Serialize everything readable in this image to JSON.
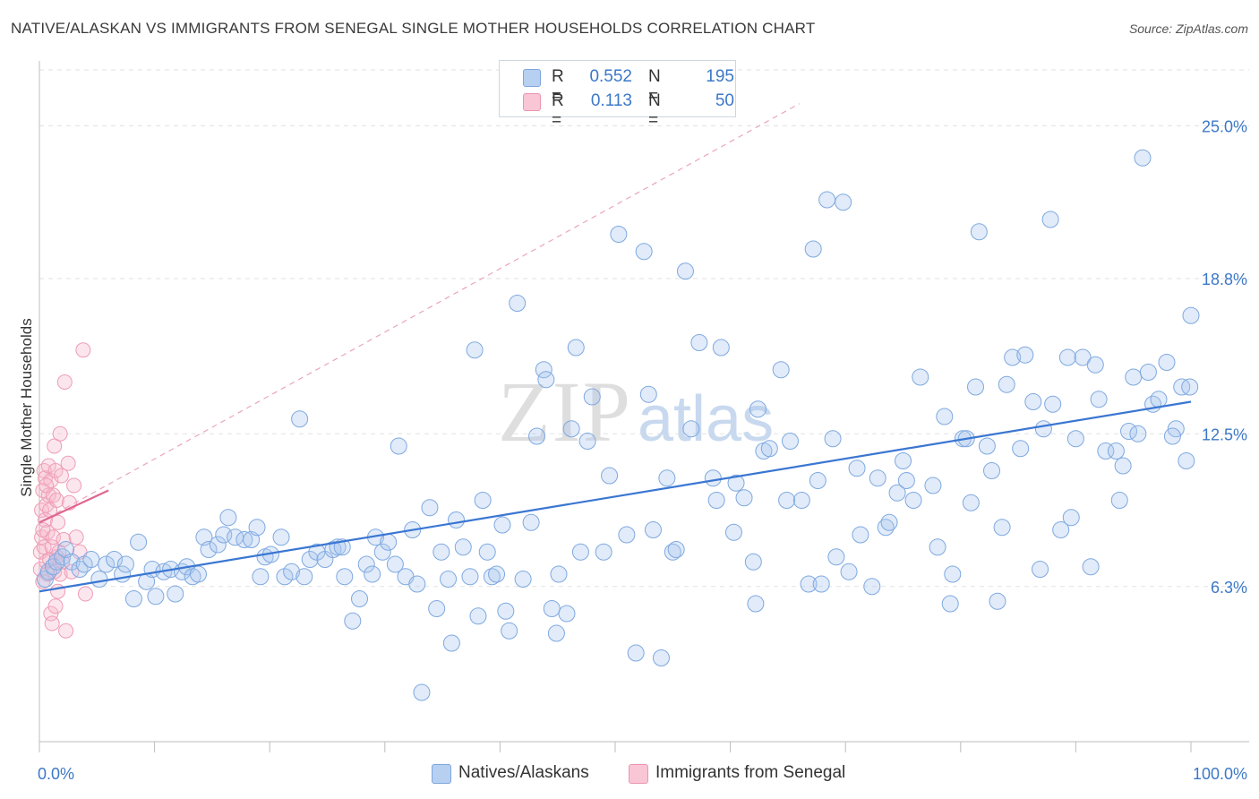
{
  "header": {
    "title": "NATIVE/ALASKAN VS IMMIGRANTS FROM SENEGAL SINGLE MOTHER HOUSEHOLDS CORRELATION CHART",
    "source": "Source: ZipAtlas.com"
  },
  "legend_top": {
    "rows": [
      {
        "r_label": "R =",
        "r_value": "0.552",
        "n_label": "N =",
        "n_value": "195",
        "color": "#a8c6ee"
      },
      {
        "r_label": "R =",
        "r_value": "0.113",
        "n_label": "N =",
        "n_value": "50",
        "color": "#f6b8cb"
      }
    ]
  },
  "legend_bottom": {
    "items": [
      {
        "label": "Natives/Alaskans",
        "color": "#a8c6ee"
      },
      {
        "label": "Immigrants from Senegal",
        "color": "#f6b8cb"
      }
    ]
  },
  "watermark": {
    "zip": "ZIP",
    "atlas": "atlas"
  },
  "chart_data": {
    "type": "scatter",
    "title": "NATIVE/ALASKAN VS IMMIGRANTS FROM SENEGAL SINGLE MOTHER HOUSEHOLDS CORRELATION CHART",
    "xlabel": "",
    "ylabel": "Single Mother Households",
    "xlim": [
      0,
      100
    ],
    "ylim": [
      0,
      27.2
    ],
    "x_tick_labels": [
      "0.0%",
      "100.0%"
    ],
    "y_ticks": [
      6.3,
      12.5,
      18.8,
      25.0
    ],
    "y_tick_labels": [
      "6.3%",
      "12.5%",
      "18.8%",
      "25.0%"
    ],
    "grid": "horizontal dashed",
    "legend_position": "top-center",
    "colors": {
      "blue": "#3a76d2",
      "blue_fill": "#a8c6ee",
      "pink": "#e06690",
      "pink_fill": "#f6b8cb"
    },
    "series": [
      {
        "name": "Natives/Alaskans",
        "color": "#3a76d2",
        "trend": {
          "x": [
            0,
            100
          ],
          "y": [
            6.1,
            13.8
          ]
        },
        "points": [
          [
            0.5,
            6.6
          ],
          [
            0.8,
            6.9
          ],
          [
            1.2,
            7.1
          ],
          [
            1.5,
            7.3
          ],
          [
            2.0,
            7.5
          ],
          [
            2.3,
            7.8
          ],
          [
            2.8,
            7.3
          ],
          [
            3.5,
            7.0
          ],
          [
            3.9,
            7.2
          ],
          [
            4.5,
            7.4
          ],
          [
            5.2,
            6.6
          ],
          [
            5.8,
            7.2
          ],
          [
            6.5,
            7.4
          ],
          [
            7.2,
            6.8
          ],
          [
            7.5,
            7.2
          ],
          [
            8.2,
            5.8
          ],
          [
            8.6,
            8.1
          ],
          [
            9.3,
            6.5
          ],
          [
            9.8,
            7.0
          ],
          [
            10.1,
            5.9
          ],
          [
            10.8,
            6.9
          ],
          [
            11.4,
            7.0
          ],
          [
            11.8,
            6.0
          ],
          [
            12.4,
            6.9
          ],
          [
            12.8,
            7.1
          ],
          [
            13.3,
            6.7
          ],
          [
            13.8,
            6.8
          ],
          [
            14.3,
            8.3
          ],
          [
            14.7,
            7.8
          ],
          [
            15.5,
            8.0
          ],
          [
            16.0,
            8.4
          ],
          [
            16.4,
            9.1
          ],
          [
            17.0,
            8.3
          ],
          [
            17.8,
            8.2
          ],
          [
            18.4,
            8.2
          ],
          [
            18.9,
            8.7
          ],
          [
            19.2,
            6.7
          ],
          [
            19.6,
            7.5
          ],
          [
            20.1,
            7.6
          ],
          [
            21.0,
            8.3
          ],
          [
            21.3,
            6.7
          ],
          [
            21.9,
            6.9
          ],
          [
            22.6,
            13.1
          ],
          [
            23.0,
            6.7
          ],
          [
            23.5,
            7.4
          ],
          [
            24.1,
            7.7
          ],
          [
            24.8,
            7.4
          ],
          [
            25.5,
            7.8
          ],
          [
            25.9,
            7.9
          ],
          [
            26.3,
            7.9
          ],
          [
            26.5,
            6.7
          ],
          [
            27.2,
            4.9
          ],
          [
            27.8,
            5.8
          ],
          [
            28.4,
            7.2
          ],
          [
            28.9,
            6.8
          ],
          [
            29.2,
            8.3
          ],
          [
            29.8,
            7.7
          ],
          [
            30.3,
            8.1
          ],
          [
            30.9,
            7.2
          ],
          [
            31.2,
            12.0
          ],
          [
            31.8,
            6.7
          ],
          [
            32.4,
            8.6
          ],
          [
            32.8,
            6.4
          ],
          [
            33.2,
            2.0
          ],
          [
            33.9,
            9.5
          ],
          [
            34.5,
            5.4
          ],
          [
            34.9,
            7.7
          ],
          [
            35.5,
            6.6
          ],
          [
            35.8,
            4.0
          ],
          [
            36.2,
            9.0
          ],
          [
            36.8,
            7.9
          ],
          [
            37.4,
            6.7
          ],
          [
            37.8,
            15.9
          ],
          [
            38.1,
            5.1
          ],
          [
            38.5,
            9.8
          ],
          [
            38.9,
            7.7
          ],
          [
            39.3,
            6.7
          ],
          [
            39.7,
            6.8
          ],
          [
            40.2,
            8.8
          ],
          [
            40.5,
            5.3
          ],
          [
            40.8,
            4.5
          ],
          [
            41.5,
            17.8
          ],
          [
            42.0,
            6.6
          ],
          [
            42.7,
            8.9
          ],
          [
            43.2,
            12.4
          ],
          [
            43.8,
            15.1
          ],
          [
            44.0,
            14.7
          ],
          [
            44.5,
            5.4
          ],
          [
            44.9,
            4.4
          ],
          [
            45.1,
            6.8
          ],
          [
            45.8,
            5.2
          ],
          [
            46.2,
            12.7
          ],
          [
            46.6,
            16.0
          ],
          [
            47.0,
            7.7
          ],
          [
            47.6,
            12.2
          ],
          [
            48.0,
            14.0
          ],
          [
            49.0,
            7.7
          ],
          [
            49.5,
            10.8
          ],
          [
            50.3,
            20.6
          ],
          [
            51.0,
            8.4
          ],
          [
            51.8,
            3.6
          ],
          [
            52.5,
            19.9
          ],
          [
            52.9,
            14.1
          ],
          [
            53.3,
            8.6
          ],
          [
            54.0,
            3.4
          ],
          [
            54.5,
            10.7
          ],
          [
            55.0,
            7.7
          ],
          [
            55.3,
            7.8
          ],
          [
            56.1,
            19.1
          ],
          [
            56.6,
            12.7
          ],
          [
            57.3,
            16.2
          ],
          [
            58.5,
            10.7
          ],
          [
            58.8,
            9.8
          ],
          [
            59.2,
            16.0
          ],
          [
            60.3,
            8.5
          ],
          [
            60.5,
            10.5
          ],
          [
            61.2,
            9.9
          ],
          [
            62.0,
            7.3
          ],
          [
            62.2,
            5.6
          ],
          [
            62.4,
            13.5
          ],
          [
            62.9,
            11.8
          ],
          [
            63.4,
            11.9
          ],
          [
            64.4,
            15.1
          ],
          [
            64.9,
            9.8
          ],
          [
            65.2,
            12.2
          ],
          [
            66.2,
            9.8
          ],
          [
            66.8,
            6.4
          ],
          [
            67.2,
            20.0
          ],
          [
            67.6,
            10.6
          ],
          [
            67.9,
            6.4
          ],
          [
            68.4,
            22.0
          ],
          [
            68.9,
            12.3
          ],
          [
            69.2,
            7.5
          ],
          [
            69.8,
            21.9
          ],
          [
            70.3,
            6.9
          ],
          [
            71.0,
            11.1
          ],
          [
            71.3,
            8.4
          ],
          [
            72.3,
            6.3
          ],
          [
            72.8,
            10.7
          ],
          [
            73.5,
            8.7
          ],
          [
            73.8,
            8.9
          ],
          [
            74.5,
            10.1
          ],
          [
            75.0,
            11.4
          ],
          [
            75.3,
            10.6
          ],
          [
            75.9,
            9.8
          ],
          [
            76.5,
            14.8
          ],
          [
            77.6,
            10.4
          ],
          [
            78.0,
            7.9
          ],
          [
            78.6,
            13.2
          ],
          [
            79.1,
            5.6
          ],
          [
            79.3,
            6.8
          ],
          [
            80.2,
            12.3
          ],
          [
            80.5,
            12.3
          ],
          [
            80.9,
            9.7
          ],
          [
            81.3,
            14.4
          ],
          [
            81.6,
            20.7
          ],
          [
            82.3,
            12.0
          ],
          [
            82.7,
            11.0
          ],
          [
            83.2,
            5.7
          ],
          [
            83.6,
            8.7
          ],
          [
            84.0,
            14.5
          ],
          [
            84.5,
            15.6
          ],
          [
            85.2,
            11.9
          ],
          [
            85.6,
            15.7
          ],
          [
            86.3,
            13.8
          ],
          [
            86.9,
            7.0
          ],
          [
            87.2,
            12.7
          ],
          [
            87.8,
            21.2
          ],
          [
            88.0,
            13.7
          ],
          [
            88.7,
            8.6
          ],
          [
            89.3,
            15.6
          ],
          [
            89.6,
            9.1
          ],
          [
            90.0,
            12.3
          ],
          [
            90.6,
            15.6
          ],
          [
            91.3,
            7.1
          ],
          [
            91.7,
            15.3
          ],
          [
            92.0,
            13.9
          ],
          [
            92.6,
            11.8
          ],
          [
            93.5,
            11.8
          ],
          [
            94.1,
            11.2
          ],
          [
            94.6,
            12.6
          ],
          [
            95.0,
            14.8
          ],
          [
            95.4,
            12.5
          ],
          [
            96.3,
            15.0
          ],
          [
            96.7,
            13.7
          ],
          [
            97.2,
            13.9
          ],
          [
            97.9,
            15.4
          ],
          [
            98.7,
            12.7
          ],
          [
            99.2,
            14.4
          ],
          [
            99.6,
            11.4
          ],
          [
            100.0,
            17.3
          ],
          [
            93.8,
            9.8
          ],
          [
            99.9,
            14.4
          ],
          [
            95.8,
            23.7
          ],
          [
            98.4,
            12.4
          ]
        ]
      },
      {
        "name": "Immigrants from Senegal",
        "color": "#e06690",
        "trend": {
          "x": [
            0,
            6
          ],
          "y": [
            8.9,
            10.2
          ]
        },
        "points": [
          [
            0.1,
            7.0
          ],
          [
            0.1,
            7.7
          ],
          [
            0.2,
            8.3
          ],
          [
            0.2,
            9.4
          ],
          [
            0.3,
            10.2
          ],
          [
            0.3,
            6.5
          ],
          [
            0.4,
            11.0
          ],
          [
            0.4,
            7.9
          ],
          [
            0.5,
            9.0
          ],
          [
            0.5,
            10.7
          ],
          [
            0.6,
            7.3
          ],
          [
            0.6,
            9.6
          ],
          [
            0.7,
            8.5
          ],
          [
            0.7,
            6.8
          ],
          [
            0.8,
            10.0
          ],
          [
            0.8,
            11.2
          ],
          [
            0.9,
            7.4
          ],
          [
            0.9,
            9.4
          ],
          [
            1.0,
            5.2
          ],
          [
            1.0,
            10.6
          ],
          [
            1.1,
            7.9
          ],
          [
            1.1,
            4.8
          ],
          [
            1.2,
            10.0
          ],
          [
            1.2,
            8.3
          ],
          [
            1.3,
            12.0
          ],
          [
            1.3,
            6.9
          ],
          [
            1.4,
            11.0
          ],
          [
            1.4,
            5.5
          ],
          [
            1.5,
            7.5
          ],
          [
            1.5,
            9.8
          ],
          [
            1.6,
            6.1
          ],
          [
            1.6,
            8.9
          ],
          [
            1.7,
            7.7
          ],
          [
            1.8,
            12.5
          ],
          [
            1.8,
            6.8
          ],
          [
            1.9,
            10.8
          ],
          [
            2.0,
            7.3
          ],
          [
            2.1,
            8.2
          ],
          [
            2.2,
            14.6
          ],
          [
            2.3,
            4.5
          ],
          [
            2.5,
            11.3
          ],
          [
            2.6,
            9.7
          ],
          [
            2.8,
            6.9
          ],
          [
            3.0,
            10.4
          ],
          [
            3.2,
            8.3
          ],
          [
            3.5,
            7.7
          ],
          [
            3.8,
            15.9
          ],
          [
            4.0,
            6.0
          ],
          [
            0.3,
            8.6
          ],
          [
            0.6,
            10.4
          ]
        ]
      }
    ]
  }
}
